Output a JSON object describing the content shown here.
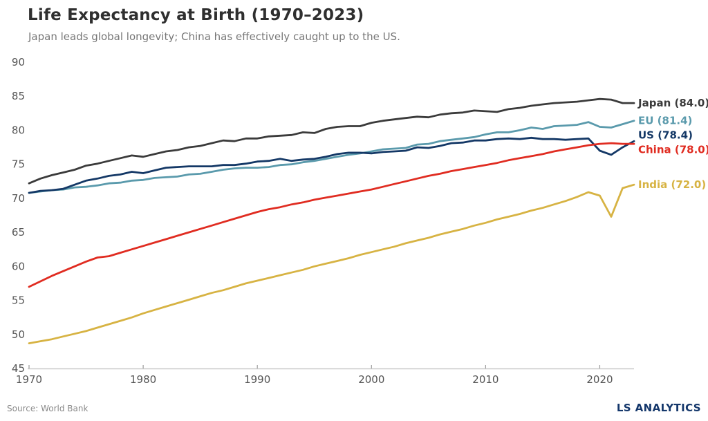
{
  "header": {
    "title": "Life Expectancy at Birth (1970–2023)",
    "subtitle": "Japan leads global longevity; China has effectively caught up to the US."
  },
  "footer": {
    "source": "Source: World Bank",
    "brand": "LS ANALYTICS"
  },
  "colors": {
    "axis_line": "#c9c9c9",
    "tick_mark": "#9a9a9a",
    "tick_label": "#555555",
    "background": "#ffffff"
  },
  "chart_data": {
    "type": "line",
    "title": "Life Expectancy at Birth (1970–2023)",
    "subtitle": "Japan leads global longevity; China has effectively caught up to the US.",
    "xlabel": "",
    "ylabel": "",
    "x_start": 1970,
    "x_end": 2023,
    "xticks": [
      1970,
      1980,
      1990,
      2000,
      2010,
      2020
    ],
    "ylim": [
      45,
      90
    ],
    "yticks": [
      45,
      50,
      55,
      60,
      65,
      70,
      75,
      80,
      85,
      90
    ],
    "grid": false,
    "legend_position": "right-end-labels",
    "series": [
      {
        "name": "Japan",
        "end_label": "Japan (84.0)",
        "final_value": 84.0,
        "color": "#3b3b3b",
        "values": [
          72.2,
          72.9,
          73.4,
          73.8,
          74.2,
          74.8,
          75.1,
          75.5,
          75.9,
          76.3,
          76.1,
          76.5,
          76.9,
          77.1,
          77.5,
          77.7,
          78.1,
          78.5,
          78.4,
          78.8,
          78.8,
          79.1,
          79.2,
          79.3,
          79.7,
          79.6,
          80.2,
          80.5,
          80.6,
          80.6,
          81.1,
          81.4,
          81.6,
          81.8,
          82.0,
          81.9,
          82.3,
          82.5,
          82.6,
          82.9,
          82.8,
          82.7,
          83.1,
          83.3,
          83.6,
          83.8,
          84.0,
          84.1,
          84.2,
          84.4,
          84.6,
          84.5,
          84.0,
          84.0
        ]
      },
      {
        "name": "EU",
        "end_label": "EU (81.4)",
        "final_value": 81.4,
        "color": "#5a9aac",
        "values": [
          70.8,
          71.0,
          71.2,
          71.3,
          71.6,
          71.7,
          71.9,
          72.2,
          72.3,
          72.6,
          72.7,
          73.0,
          73.1,
          73.2,
          73.5,
          73.6,
          73.9,
          74.2,
          74.4,
          74.5,
          74.5,
          74.6,
          74.9,
          75.0,
          75.3,
          75.5,
          75.8,
          76.1,
          76.4,
          76.6,
          76.9,
          77.2,
          77.3,
          77.4,
          77.9,
          78.0,
          78.4,
          78.6,
          78.8,
          79.0,
          79.4,
          79.7,
          79.7,
          80.0,
          80.4,
          80.2,
          80.6,
          80.7,
          80.8,
          81.2,
          80.5,
          80.4,
          80.9,
          81.4
        ]
      },
      {
        "name": "US",
        "end_label": "US (78.4)",
        "final_value": 78.4,
        "color": "#143866",
        "values": [
          70.8,
          71.1,
          71.2,
          71.4,
          72.0,
          72.6,
          72.9,
          73.3,
          73.5,
          73.9,
          73.7,
          74.1,
          74.5,
          74.6,
          74.7,
          74.7,
          74.7,
          74.9,
          74.9,
          75.1,
          75.4,
          75.5,
          75.8,
          75.5,
          75.7,
          75.8,
          76.1,
          76.5,
          76.7,
          76.7,
          76.6,
          76.8,
          76.9,
          77.0,
          77.5,
          77.4,
          77.7,
          78.1,
          78.2,
          78.5,
          78.5,
          78.7,
          78.8,
          78.7,
          78.9,
          78.7,
          78.7,
          78.6,
          78.7,
          78.8,
          77.0,
          76.4,
          77.5,
          78.4
        ]
      },
      {
        "name": "China",
        "end_label": "China (78.0)",
        "final_value": 78.0,
        "color": "#e02c21",
        "values": [
          57.0,
          57.8,
          58.6,
          59.3,
          60.0,
          60.7,
          61.3,
          61.5,
          62.0,
          62.5,
          63.0,
          63.5,
          64.0,
          64.5,
          65.0,
          65.5,
          66.0,
          66.5,
          67.0,
          67.5,
          68.0,
          68.4,
          68.7,
          69.1,
          69.4,
          69.8,
          70.1,
          70.4,
          70.7,
          71.0,
          71.3,
          71.7,
          72.1,
          72.5,
          72.9,
          73.3,
          73.6,
          74.0,
          74.3,
          74.6,
          74.9,
          75.2,
          75.6,
          75.9,
          76.2,
          76.5,
          76.9,
          77.2,
          77.5,
          77.8,
          78.0,
          78.1,
          78.0,
          78.0
        ]
      },
      {
        "name": "India",
        "end_label": "India (72.0)",
        "final_value": 72.0,
        "color": "#d7b343",
        "values": [
          48.7,
          49.0,
          49.3,
          49.7,
          50.1,
          50.5,
          51.0,
          51.5,
          52.0,
          52.5,
          53.1,
          53.6,
          54.1,
          54.6,
          55.1,
          55.6,
          56.1,
          56.5,
          57.0,
          57.5,
          57.9,
          58.3,
          58.7,
          59.1,
          59.5,
          60.0,
          60.4,
          60.8,
          61.2,
          61.7,
          62.1,
          62.5,
          62.9,
          63.4,
          63.8,
          64.2,
          64.7,
          65.1,
          65.5,
          66.0,
          66.4,
          66.9,
          67.3,
          67.7,
          68.2,
          68.6,
          69.1,
          69.6,
          70.2,
          70.9,
          70.4,
          67.3,
          71.5,
          72.0
        ]
      }
    ]
  }
}
